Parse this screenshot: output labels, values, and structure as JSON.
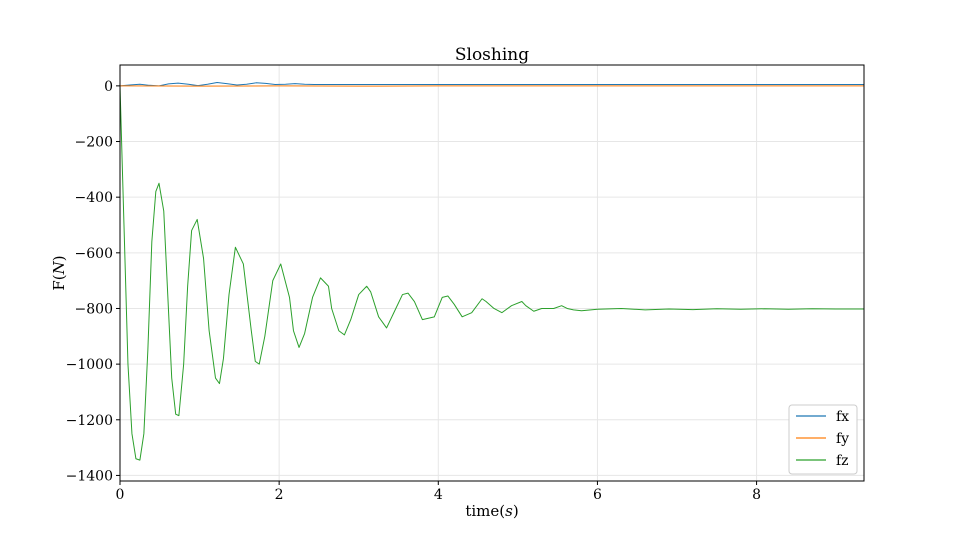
{
  "chart_data": {
    "type": "line",
    "title": "Sloshing",
    "xlabel_prefix": "time(",
    "xlabel_var": "s",
    "xlabel_suffix": ")",
    "ylabel_prefix": "F(",
    "ylabel_var": "N",
    "ylabel_suffix": ")",
    "xlim": [
      0,
      9.35
    ],
    "ylim": [
      -1420,
      75
    ],
    "x_ticks": [
      0,
      2,
      4,
      6,
      8
    ],
    "x_tick_labels": [
      "0",
      "2",
      "4",
      "6",
      "8"
    ],
    "y_ticks": [
      0,
      -200,
      -400,
      -600,
      -800,
      -1000,
      -1200,
      -1400
    ],
    "y_tick_labels": [
      "0",
      "−200",
      "−400",
      "−600",
      "−800",
      "−1000",
      "−1200",
      "−1400"
    ],
    "grid": true,
    "legend_position": "lower-right",
    "series": [
      {
        "name": "fx",
        "color": "#1f77b4",
        "x": [
          0,
          0.12,
          0.25,
          0.37,
          0.49,
          0.61,
          0.73,
          0.86,
          0.98,
          1.1,
          1.22,
          1.34,
          1.47,
          1.59,
          1.71,
          1.83,
          1.95,
          2.08,
          2.2,
          2.32,
          2.44,
          2.56,
          2.69,
          2.81,
          3.0,
          3.5,
          4.0,
          5.0,
          6.0,
          7.0,
          8.0,
          9.35
        ],
        "y": [
          0,
          3,
          6,
          2,
          0,
          7,
          10,
          6,
          1,
          6,
          12,
          8,
          3,
          6,
          11,
          9,
          5,
          6,
          8,
          6,
          5,
          5,
          5,
          5,
          5,
          5,
          5,
          5,
          5,
          5,
          5,
          5
        ]
      },
      {
        "name": "fy",
        "color": "#ff7f0e",
        "x": [
          0,
          1,
          2,
          3,
          4,
          5,
          6,
          7,
          8,
          9.35
        ],
        "y": [
          0,
          -1,
          0,
          -1,
          0,
          0,
          0,
          0,
          0,
          0
        ]
      },
      {
        "name": "fz",
        "color": "#2ca02c",
        "x": [
          0,
          0.05,
          0.1,
          0.15,
          0.2,
          0.25,
          0.3,
          0.35,
          0.4,
          0.45,
          0.49,
          0.55,
          0.6,
          0.65,
          0.7,
          0.74,
          0.8,
          0.85,
          0.9,
          0.97,
          1.05,
          1.12,
          1.2,
          1.25,
          1.3,
          1.37,
          1.45,
          1.55,
          1.65,
          1.7,
          1.75,
          1.82,
          1.92,
          2.02,
          2.13,
          2.18,
          2.25,
          2.32,
          2.42,
          2.52,
          2.62,
          2.66,
          2.75,
          2.82,
          2.9,
          3.0,
          3.1,
          3.15,
          3.25,
          3.35,
          3.45,
          3.55,
          3.62,
          3.7,
          3.8,
          3.95,
          4.05,
          4.12,
          4.2,
          4.3,
          4.42,
          4.55,
          4.6,
          4.7,
          4.8,
          4.92,
          5.05,
          5.1,
          5.2,
          5.3,
          5.45,
          5.55,
          5.62,
          5.7,
          5.8,
          6.0,
          6.3,
          6.6,
          6.9,
          7.2,
          7.5,
          7.8,
          8.1,
          8.4,
          8.7,
          9.0,
          9.35
        ],
        "y": [
          0,
          -500,
          -1000,
          -1250,
          -1340,
          -1345,
          -1250,
          -950,
          -560,
          -380,
          -350,
          -450,
          -750,
          -1050,
          -1180,
          -1185,
          -1000,
          -720,
          -520,
          -480,
          -620,
          -880,
          -1050,
          -1070,
          -980,
          -750,
          -580,
          -640,
          -880,
          -990,
          -1000,
          -900,
          -700,
          -640,
          -760,
          -880,
          -940,
          -890,
          -760,
          -690,
          -720,
          -800,
          -880,
          -895,
          -840,
          -750,
          -720,
          -740,
          -830,
          -870,
          -810,
          -750,
          -745,
          -775,
          -840,
          -830,
          -760,
          -755,
          -785,
          -830,
          -815,
          -765,
          -775,
          -800,
          -815,
          -790,
          -775,
          -790,
          -810,
          -800,
          -800,
          -790,
          -800,
          -805,
          -808,
          -803,
          -800,
          -805,
          -802,
          -804,
          -801,
          -803,
          -801,
          -803,
          -801,
          -802,
          -802
        ]
      }
    ]
  }
}
